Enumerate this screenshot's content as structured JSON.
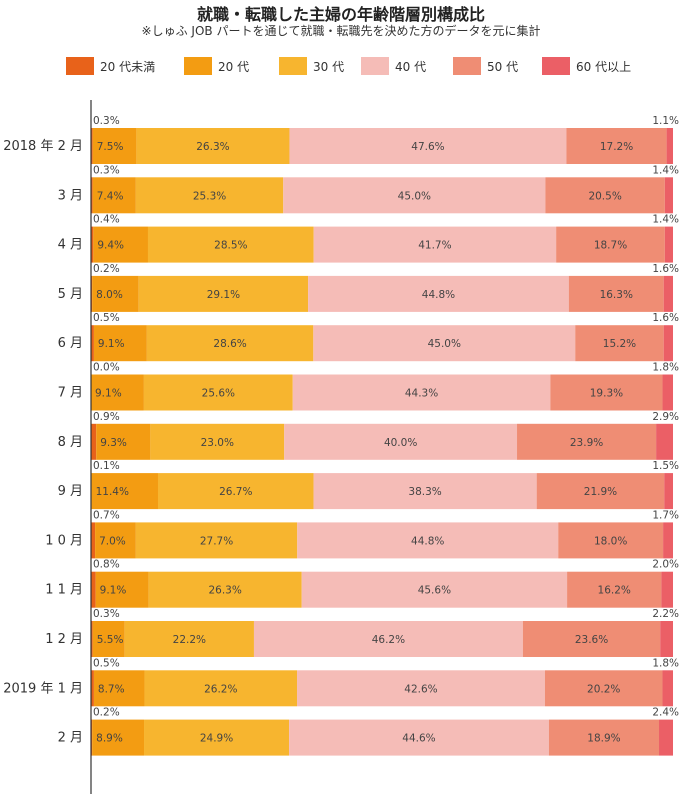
{
  "chart_data": {
    "type": "bar",
    "orientation": "horizontal",
    "stacked": true,
    "normalized_to_100": true,
    "title": "就職・転職した主婦の年齢階層別構成比",
    "subtitle": "※しゅふ JOB パートを通じて就職・転職先を決めた方のデータを元に集計",
    "legend_position": "top",
    "unit": "%",
    "categories": [
      "2018 年 2 月",
      "3 月",
      "4 月",
      "5 月",
      "6 月",
      "7 月",
      "8 月",
      "9 月",
      "1 0 月",
      "1 1 月",
      "1 2 月",
      "2019 年 1 月",
      "2 月"
    ],
    "series": [
      {
        "name": "20 代未満",
        "color": "#e8621a",
        "values": [
          0.3,
          0.3,
          0.4,
          0.2,
          0.5,
          0.0,
          0.9,
          0.1,
          0.7,
          0.8,
          0.3,
          0.5,
          0.2
        ]
      },
      {
        "name": "20 代",
        "color": "#f39c12",
        "values": [
          7.5,
          7.4,
          9.4,
          8.0,
          9.1,
          9.1,
          9.3,
          11.4,
          7.0,
          9.1,
          5.5,
          8.7,
          8.9
        ]
      },
      {
        "name": "30 代",
        "color": "#f7b52f",
        "values": [
          26.3,
          25.3,
          28.5,
          29.1,
          28.6,
          25.6,
          23.0,
          26.7,
          27.7,
          26.3,
          22.2,
          26.2,
          24.9
        ]
      },
      {
        "name": "40 代",
        "color": "#f5bcb7",
        "values": [
          47.6,
          45.0,
          41.7,
          44.8,
          45.0,
          44.3,
          40.0,
          38.3,
          44.8,
          45.6,
          46.2,
          42.6,
          44.6
        ]
      },
      {
        "name": "50 代",
        "color": "#ef8d74",
        "values": [
          17.2,
          20.5,
          18.7,
          16.3,
          15.2,
          19.3,
          23.9,
          21.9,
          18.0,
          16.2,
          23.6,
          20.2,
          18.9
        ]
      },
      {
        "name": "60 代以上",
        "color": "#eb5f66",
        "values": [
          1.1,
          1.4,
          1.4,
          1.6,
          1.6,
          1.8,
          2.9,
          1.5,
          1.7,
          2.0,
          2.2,
          1.8,
          2.4
        ]
      }
    ],
    "grid": false
  }
}
